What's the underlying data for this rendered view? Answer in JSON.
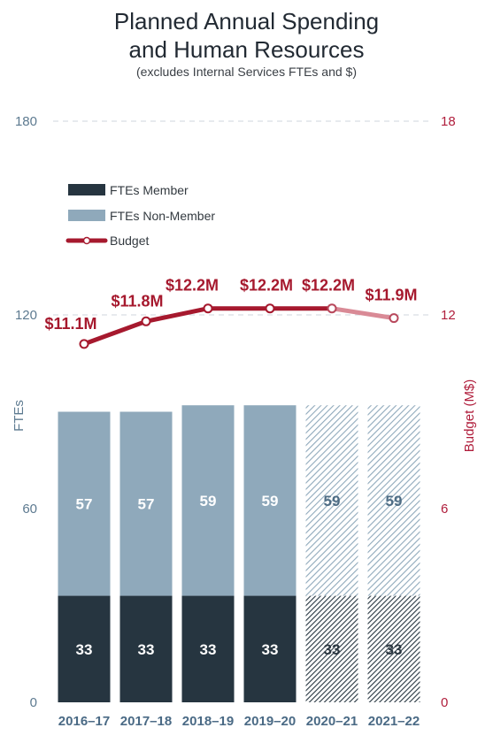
{
  "title_line1": "Planned Annual Spending",
  "title_line2": "and Human Resources",
  "subtitle": "(excludes Internal Services FTEs and $)",
  "colors": {
    "member": "#263540",
    "non_member": "#8fa9bb",
    "budget": "#a6192e",
    "budget_projected": "#d98a96",
    "left_axis": "#5d7a90",
    "right_axis": "#b01e3c"
  },
  "chart_data": {
    "type": "bar",
    "categories": [
      "2016–17",
      "2017–18",
      "2018–19",
      "2019–20",
      "2020–21",
      "2021–22"
    ],
    "series": [
      {
        "name": "FTEs Member",
        "values": [
          33,
          33,
          33,
          33,
          33,
          33
        ]
      },
      {
        "name": "FTEs Non-Member",
        "values": [
          57,
          57,
          59,
          59,
          59,
          59
        ]
      },
      {
        "name": "Budget",
        "type": "line",
        "axis": "right",
        "values": [
          11.1,
          11.8,
          12.2,
          12.2,
          12.2,
          11.9
        ],
        "labels": [
          "$11.1M",
          "$11.8M",
          "$12.2M",
          "$12.2M",
          "$12.2M",
          "$11.9M"
        ]
      }
    ],
    "projected_from_category": "2020–21",
    "stacked": true,
    "ylabel": "FTEs",
    "y2label": "Budget (M$)",
    "ylim": [
      0,
      180
    ],
    "y2lim": [
      0,
      18
    ],
    "yticks": [
      "0",
      "60",
      "120",
      "180"
    ],
    "y2ticks": [
      "0",
      "6",
      "12",
      "18"
    ],
    "legend": [
      "FTEs Member",
      "FTEs Non-Member",
      "Budget"
    ],
    "legend_position": "upper-left",
    "grid": "dashed horizontal at 120 and 180"
  }
}
